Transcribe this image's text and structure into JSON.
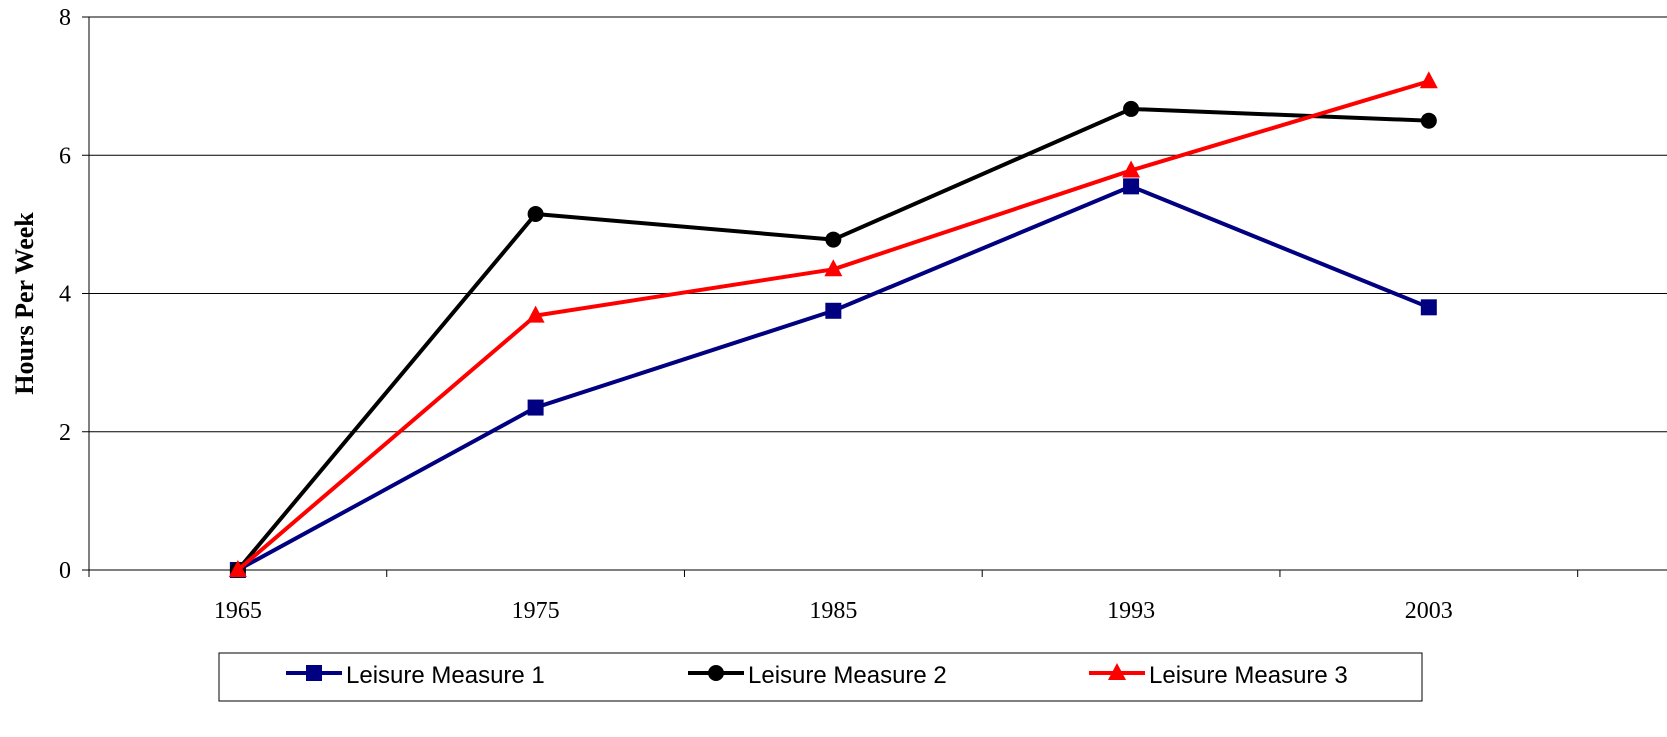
{
  "chart_data": {
    "type": "line",
    "title": "",
    "xlabel": "",
    "ylabel": "Hours Per Week",
    "categories": [
      "1965",
      "1975",
      "1985",
      "1993",
      "2003"
    ],
    "ylim": [
      0,
      8
    ],
    "yticks": [
      0,
      2,
      4,
      6,
      8
    ],
    "grid": "horizontal",
    "legend_position": "bottom",
    "series": [
      {
        "name": "Leisure Measure 1",
        "values": [
          0,
          2.35,
          3.75,
          5.55,
          3.8
        ],
        "color": "#000080",
        "marker": "square"
      },
      {
        "name": "Leisure Measure 2",
        "values": [
          0,
          5.15,
          4.78,
          6.67,
          6.5
        ],
        "color": "#000000",
        "marker": "circle"
      },
      {
        "name": "Leisure Measure 3",
        "values": [
          0,
          3.68,
          4.35,
          5.78,
          7.07
        ],
        "color": "#ff0000",
        "marker": "triangle"
      }
    ]
  }
}
